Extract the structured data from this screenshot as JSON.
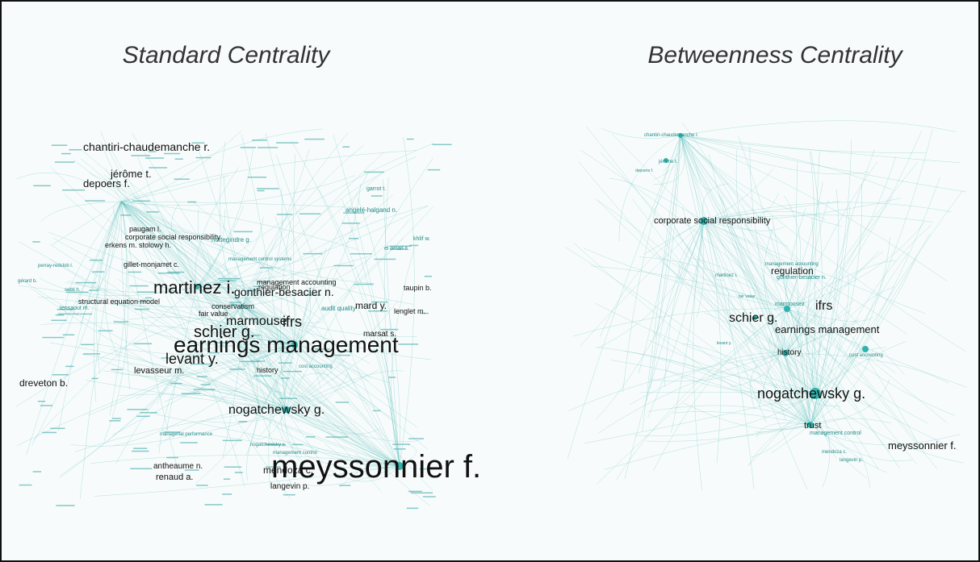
{
  "panels": [
    {
      "title": "Standard Centrality",
      "labels": [
        "chantiri-chaudemanche r.",
        "jérôme t.",
        "depoers f.",
        "paugam l.",
        "corporate social responsibility",
        "erkens m. stolowy h.",
        "gillet-monjarret c.",
        "martinez i.",
        "gonthier-besacier n.",
        "management accounting",
        "regulation",
        "taupin b.",
        "mard y.",
        "lenglet m.",
        "marmouse",
        "ifrs",
        "schier g.",
        "marsat s.",
        "earnings management",
        "levant y.",
        "levasseur m.",
        "history",
        "structural equation model",
        "fair value",
        "conservatism",
        "dreveton b.",
        "nogatchewsky g.",
        "meyssonnier f.",
        "mendoza c.",
        "antheaume n.",
        "renaud a.",
        "langevin p.",
        "garrot t.",
        "angelé-halgand n.",
        "el orrari s.",
        "khlif w.",
        "perray-redslob l.",
        "gérard b.",
        "sebti h.",
        "tensaout m.",
        "hottegindre g.",
        "management control systems",
        "audit quality",
        "cost accounting",
        "management control",
        "nogatchewsky s.",
        "managerial performance"
      ]
    },
    {
      "title": "Betweenness Centrality",
      "labels": [
        "chantiri-chaudemanche r.",
        "jérôme t.",
        "depoers f.",
        "corporate social responsibility",
        "management accounting",
        "regulation",
        "gonthier-besacier n.",
        "martinez i.",
        "marmousez",
        "ifrs",
        "schier g.",
        "earnings management",
        "fair value",
        "levant y.",
        "history",
        "cost accounting",
        "nogatchewsky g.",
        "trust",
        "management control",
        "meyssonnier f.",
        "mendoza c.",
        "langevin p."
      ]
    }
  ]
}
